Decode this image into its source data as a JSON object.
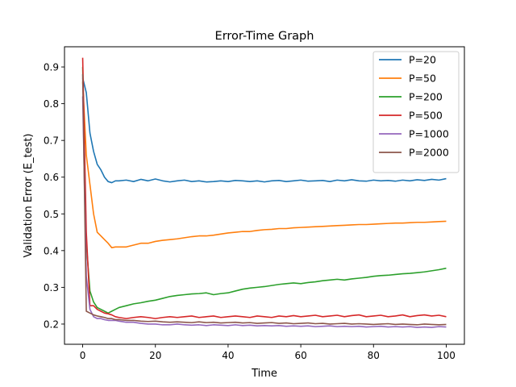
{
  "chart_data": {
    "type": "line",
    "title": "Error-Time Graph",
    "xlabel": "Time",
    "ylabel": "Validation Error (E_test)",
    "xlim": [
      -5,
      105
    ],
    "ylim": [
      0.145,
      0.955
    ],
    "xticks": [
      0,
      20,
      40,
      60,
      80,
      100
    ],
    "yticks": [
      0.2,
      0.3,
      0.4,
      0.5,
      0.6,
      0.7,
      0.8,
      0.9
    ],
    "xtick_labels": [
      "0",
      "20",
      "40",
      "60",
      "80",
      "100"
    ],
    "ytick_labels": [
      "0.2",
      "0.3",
      "0.4",
      "0.5",
      "0.6",
      "0.7",
      "0.8",
      "0.9"
    ],
    "grid": false,
    "legend_position": "top-right",
    "series": [
      {
        "name": "P=20",
        "color": "#1f77b4",
        "x": [
          0,
          1,
          2,
          3,
          4,
          5,
          6,
          7,
          8,
          9,
          10,
          12,
          14,
          16,
          18,
          20,
          22,
          24,
          26,
          28,
          30,
          32,
          34,
          36,
          38,
          40,
          42,
          44,
          46,
          48,
          50,
          52,
          54,
          56,
          58,
          60,
          62,
          64,
          66,
          68,
          70,
          72,
          74,
          76,
          78,
          80,
          82,
          84,
          86,
          88,
          90,
          92,
          94,
          96,
          98,
          100
        ],
        "y": [
          0.87,
          0.83,
          0.72,
          0.67,
          0.635,
          0.62,
          0.6,
          0.588,
          0.585,
          0.59,
          0.59,
          0.592,
          0.588,
          0.594,
          0.59,
          0.595,
          0.59,
          0.587,
          0.59,
          0.592,
          0.588,
          0.59,
          0.587,
          0.588,
          0.59,
          0.588,
          0.591,
          0.59,
          0.588,
          0.59,
          0.587,
          0.59,
          0.591,
          0.588,
          0.59,
          0.592,
          0.589,
          0.59,
          0.591,
          0.588,
          0.592,
          0.59,
          0.593,
          0.59,
          0.589,
          0.592,
          0.59,
          0.591,
          0.589,
          0.592,
          0.59,
          0.593,
          0.591,
          0.594,
          0.592,
          0.596
        ]
      },
      {
        "name": "P=50",
        "color": "#ff7f0e",
        "x": [
          0,
          1,
          2,
          3,
          4,
          5,
          6,
          7,
          8,
          9,
          10,
          12,
          14,
          16,
          18,
          20,
          22,
          24,
          26,
          28,
          30,
          32,
          34,
          36,
          38,
          40,
          42,
          44,
          46,
          48,
          50,
          52,
          54,
          56,
          58,
          60,
          62,
          64,
          66,
          68,
          70,
          72,
          74,
          76,
          78,
          80,
          82,
          84,
          86,
          88,
          90,
          92,
          94,
          96,
          98,
          100
        ],
        "y": [
          0.86,
          0.66,
          0.58,
          0.5,
          0.45,
          0.44,
          0.43,
          0.42,
          0.408,
          0.41,
          0.41,
          0.41,
          0.415,
          0.42,
          0.42,
          0.425,
          0.428,
          0.43,
          0.432,
          0.435,
          0.438,
          0.44,
          0.44,
          0.442,
          0.445,
          0.448,
          0.45,
          0.452,
          0.452,
          0.455,
          0.457,
          0.458,
          0.46,
          0.46,
          0.462,
          0.463,
          0.464,
          0.465,
          0.466,
          0.467,
          0.468,
          0.469,
          0.47,
          0.471,
          0.471,
          0.472,
          0.473,
          0.474,
          0.475,
          0.475,
          0.476,
          0.477,
          0.477,
          0.478,
          0.479,
          0.48
        ]
      },
      {
        "name": "P=200",
        "color": "#2ca02c",
        "x": [
          0,
          1,
          2,
          3,
          4,
          5,
          6,
          7,
          8,
          9,
          10,
          12,
          14,
          16,
          18,
          20,
          22,
          24,
          26,
          28,
          30,
          32,
          34,
          36,
          38,
          40,
          42,
          44,
          46,
          48,
          50,
          52,
          54,
          56,
          58,
          60,
          62,
          64,
          66,
          68,
          70,
          72,
          74,
          76,
          78,
          80,
          82,
          84,
          86,
          88,
          90,
          92,
          94,
          96,
          98,
          100
        ],
        "y": [
          0.9,
          0.42,
          0.29,
          0.26,
          0.245,
          0.24,
          0.235,
          0.23,
          0.235,
          0.24,
          0.245,
          0.25,
          0.255,
          0.258,
          0.262,
          0.265,
          0.27,
          0.275,
          0.278,
          0.28,
          0.282,
          0.283,
          0.285,
          0.28,
          0.283,
          0.285,
          0.29,
          0.295,
          0.298,
          0.3,
          0.302,
          0.305,
          0.308,
          0.31,
          0.312,
          0.31,
          0.313,
          0.315,
          0.318,
          0.32,
          0.322,
          0.32,
          0.323,
          0.325,
          0.327,
          0.33,
          0.332,
          0.333,
          0.335,
          0.337,
          0.338,
          0.34,
          0.342,
          0.345,
          0.348,
          0.352
        ]
      },
      {
        "name": "P=500",
        "color": "#d62728",
        "x": [
          0,
          1,
          2,
          3,
          4,
          5,
          6,
          7,
          8,
          9,
          10,
          12,
          14,
          16,
          18,
          20,
          22,
          24,
          26,
          28,
          30,
          32,
          34,
          36,
          38,
          40,
          42,
          44,
          46,
          48,
          50,
          52,
          54,
          56,
          58,
          60,
          62,
          64,
          66,
          68,
          70,
          72,
          74,
          76,
          78,
          80,
          82,
          84,
          86,
          88,
          90,
          92,
          94,
          96,
          98,
          100
        ],
        "y": [
          0.925,
          0.45,
          0.25,
          0.25,
          0.24,
          0.235,
          0.23,
          0.228,
          0.225,
          0.22,
          0.218,
          0.215,
          0.218,
          0.22,
          0.218,
          0.215,
          0.218,
          0.22,
          0.218,
          0.22,
          0.222,
          0.218,
          0.22,
          0.222,
          0.218,
          0.22,
          0.222,
          0.22,
          0.218,
          0.222,
          0.22,
          0.218,
          0.222,
          0.22,
          0.223,
          0.22,
          0.222,
          0.224,
          0.22,
          0.222,
          0.224,
          0.22,
          0.223,
          0.225,
          0.22,
          0.222,
          0.224,
          0.22,
          0.222,
          0.225,
          0.22,
          0.223,
          0.225,
          0.222,
          0.224,
          0.22
        ]
      },
      {
        "name": "P=1000",
        "color": "#9467bd",
        "x": [
          0,
          1,
          2,
          3,
          4,
          5,
          6,
          7,
          8,
          9,
          10,
          12,
          14,
          16,
          18,
          20,
          22,
          24,
          26,
          28,
          30,
          32,
          34,
          36,
          38,
          40,
          42,
          44,
          46,
          48,
          50,
          52,
          54,
          56,
          58,
          60,
          62,
          64,
          66,
          68,
          70,
          72,
          74,
          76,
          78,
          80,
          82,
          84,
          86,
          88,
          90,
          92,
          94,
          96,
          98,
          100
        ],
        "y": [
          0.82,
          0.33,
          0.24,
          0.22,
          0.215,
          0.215,
          0.212,
          0.21,
          0.21,
          0.21,
          0.208,
          0.205,
          0.205,
          0.202,
          0.2,
          0.2,
          0.198,
          0.198,
          0.2,
          0.198,
          0.197,
          0.198,
          0.196,
          0.198,
          0.197,
          0.196,
          0.198,
          0.196,
          0.197,
          0.195,
          0.196,
          0.195,
          0.196,
          0.194,
          0.195,
          0.194,
          0.195,
          0.193,
          0.194,
          0.195,
          0.193,
          0.194,
          0.193,
          0.194,
          0.192,
          0.193,
          0.194,
          0.192,
          0.193,
          0.192,
          0.193,
          0.191,
          0.192,
          0.191,
          0.193,
          0.192
        ]
      },
      {
        "name": "P=2000",
        "color": "#8c564b",
        "x": [
          0,
          1,
          2,
          3,
          4,
          5,
          6,
          7,
          8,
          9,
          10,
          12,
          14,
          16,
          18,
          20,
          22,
          24,
          26,
          28,
          30,
          32,
          34,
          36,
          38,
          40,
          42,
          44,
          46,
          48,
          50,
          52,
          54,
          56,
          58,
          60,
          62,
          64,
          66,
          68,
          70,
          72,
          74,
          76,
          78,
          80,
          82,
          84,
          86,
          88,
          90,
          92,
          94,
          96,
          98,
          100
        ],
        "y": [
          0.88,
          0.235,
          0.23,
          0.225,
          0.222,
          0.22,
          0.218,
          0.215,
          0.215,
          0.212,
          0.212,
          0.21,
          0.21,
          0.208,
          0.207,
          0.208,
          0.206,
          0.205,
          0.206,
          0.205,
          0.204,
          0.206,
          0.204,
          0.205,
          0.203,
          0.204,
          0.205,
          0.203,
          0.204,
          0.202,
          0.203,
          0.204,
          0.202,
          0.203,
          0.201,
          0.202,
          0.203,
          0.201,
          0.202,
          0.2,
          0.201,
          0.202,
          0.2,
          0.201,
          0.2,
          0.199,
          0.2,
          0.201,
          0.199,
          0.2,
          0.199,
          0.198,
          0.2,
          0.199,
          0.198,
          0.199
        ]
      }
    ]
  }
}
